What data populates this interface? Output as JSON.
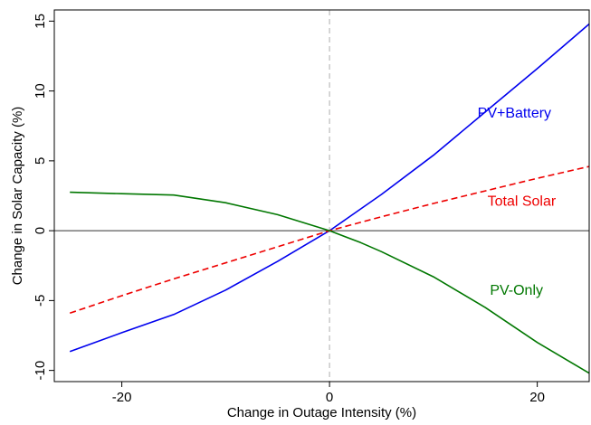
{
  "chart_data": {
    "type": "line",
    "title": "",
    "xlabel": "Change in Outage Intensity (%)",
    "ylabel": "Change in Solar Capacity (%)",
    "xlim": [
      -26.5,
      25
    ],
    "ylim": [
      -10.8,
      15.8
    ],
    "x_ticks": [
      -20,
      0,
      20
    ],
    "x_tick_labels": [
      "-20",
      "0",
      "20"
    ],
    "y_ticks": [
      -10,
      -5,
      0,
      5,
      10,
      15
    ],
    "y_tick_labels": [
      "-10",
      "-5",
      "0",
      "5",
      "10",
      "15"
    ],
    "grid": false,
    "legend": "none",
    "reference_lines": {
      "horizontal_zero_color": "#333333",
      "vertical_zero_color": "#c8c8c8"
    },
    "series": [
      {
        "name": "PV+Battery",
        "color": "#0000ee",
        "dash": "solid",
        "x": [
          -25,
          -20,
          -15,
          -10,
          -5,
          0,
          5,
          10,
          15,
          20,
          25
        ],
        "y": [
          -8.65,
          -7.3,
          -6.0,
          -4.25,
          -2.2,
          0.0,
          2.6,
          5.4,
          8.5,
          11.6,
          14.8
        ],
        "label_x": 17.8,
        "label_y": 8.1
      },
      {
        "name": "Total Solar",
        "color": "#ee0000",
        "dash": "dashed",
        "x": [
          -25,
          -20,
          -15,
          -10,
          -5,
          0,
          5,
          10,
          15,
          20,
          25
        ],
        "y": [
          -5.9,
          -4.65,
          -3.45,
          -2.3,
          -1.15,
          0.0,
          1.0,
          1.95,
          2.85,
          3.75,
          4.6
        ],
        "label_x": 18.5,
        "label_y": 1.8
      },
      {
        "name": "PV-Only",
        "color": "#007700",
        "dash": "solid",
        "x": [
          -25,
          -20,
          -15,
          -10,
          -5,
          0,
          3,
          5,
          10,
          15,
          20,
          25
        ],
        "y": [
          2.75,
          2.65,
          2.55,
          2.0,
          1.15,
          0.0,
          -0.85,
          -1.5,
          -3.3,
          -5.5,
          -8.0,
          -10.2
        ],
        "label_x": 18.0,
        "label_y": -4.6
      }
    ]
  }
}
